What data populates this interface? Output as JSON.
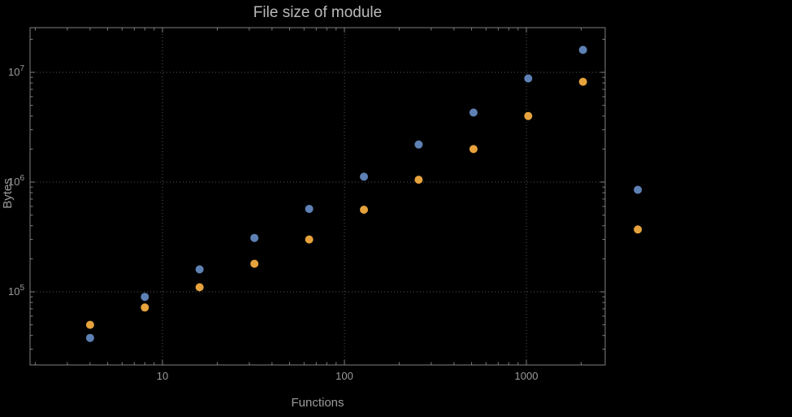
{
  "title": "File size of module",
  "colors": {
    "background": "#000000",
    "series1": "#5e81b5",
    "series2": "#e6a23c",
    "frame": "#7f7f7f",
    "grid": "#565656",
    "tick_text": "#9b9b9b",
    "title_text": "#b9b9b9"
  },
  "chart_data": {
    "type": "scatter",
    "title": "File size of module",
    "xlabel": "Functions",
    "ylabel": "Bytes",
    "x_scale": "log",
    "y_scale": "log",
    "grid": true,
    "legend": "none",
    "x_range": [
      2,
      2700
    ],
    "y_range": [
      22000,
      25000000
    ],
    "x_ticks": [
      {
        "value": 10,
        "label": "10"
      },
      {
        "value": 100,
        "label": "100"
      },
      {
        "value": 1000,
        "label": "1000"
      }
    ],
    "y_ticks": [
      {
        "value": 100000,
        "base": "10",
        "exp": "5"
      },
      {
        "value": 1000000,
        "base": "10",
        "exp": "6"
      },
      {
        "value": 10000000,
        "base": "10",
        "exp": "7"
      }
    ],
    "series": [
      {
        "name": "series-1-blue",
        "color": "#5e81b5",
        "points": [
          [
            4,
            38000
          ],
          [
            8,
            90000
          ],
          [
            16,
            160000
          ],
          [
            32,
            310000
          ],
          [
            64,
            570000
          ],
          [
            128,
            1120000
          ],
          [
            256,
            2200000
          ],
          [
            512,
            4300000
          ],
          [
            1024,
            8800000
          ],
          [
            2048,
            16000000
          ],
          [
            4096,
            850000
          ]
        ]
      },
      {
        "name": "series-2-orange",
        "color": "#e6a23c",
        "points": [
          [
            4,
            50000
          ],
          [
            8,
            72000
          ],
          [
            16,
            110000
          ],
          [
            32,
            180000
          ],
          [
            64,
            300000
          ],
          [
            128,
            560000
          ],
          [
            256,
            1050000
          ],
          [
            512,
            2000000
          ],
          [
            1024,
            4000000
          ],
          [
            2048,
            8200000
          ],
          [
            4096,
            370000
          ]
        ]
      }
    ]
  }
}
